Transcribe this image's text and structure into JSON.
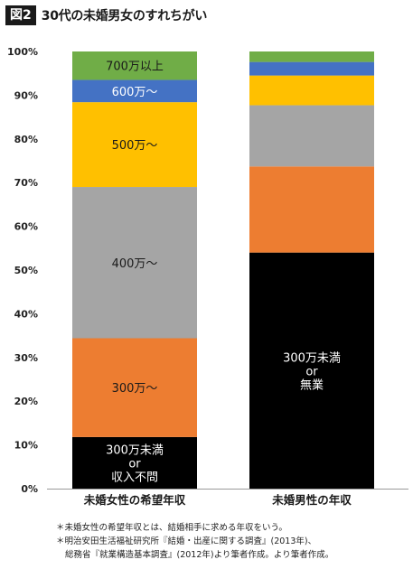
{
  "header": {
    "figure_label": "図2",
    "title": "30代の未婚男女のすれちがい"
  },
  "chart_data": {
    "type": "bar",
    "stacked": true,
    "ylim": [
      0,
      100
    ],
    "yticks": [
      "0%",
      "10%",
      "20%",
      "30%",
      "40%",
      "50%",
      "60%",
      "70%",
      "80%",
      "90%",
      "100%"
    ],
    "grid": false,
    "categories": [
      "未婚女性の希望年収",
      "未婚男性の年収"
    ],
    "series": [
      {
        "name": "300万未満or収入不問",
        "color": "#000000",
        "textColor": "#ffffff",
        "values": [
          11.8,
          54
        ],
        "labels": [
          [
            "300万未満",
            "or",
            "収入不問"
          ],
          [
            "300万未満",
            "or",
            "無業"
          ]
        ]
      },
      {
        "name": "300万～",
        "color": "#ed7d31",
        "textColor": "#1a1a1a",
        "values": [
          22.6,
          19.7
        ],
        "labels": [
          [
            "300万～"
          ],
          []
        ]
      },
      {
        "name": "400万～",
        "color": "#a5a5a5",
        "textColor": "#1a1a1a",
        "values": [
          34.6,
          14
        ],
        "labels": [
          [
            "400万～"
          ],
          []
        ]
      },
      {
        "name": "500万～",
        "color": "#ffc000",
        "textColor": "#1a1a1a",
        "values": [
          19.4,
          6.8
        ],
        "labels": [
          [
            "500万～"
          ],
          []
        ]
      },
      {
        "name": "600万～",
        "color": "#4472c4",
        "textColor": "#ffffff",
        "values": [
          5.1,
          3.1
        ],
        "labels": [
          [
            "600万～"
          ],
          []
        ]
      },
      {
        "name": "700万以上",
        "color": "#70ad47",
        "textColor": "#1a1a1a",
        "values": [
          6.5,
          2.4
        ],
        "labels": [
          [
            "700万以上"
          ],
          []
        ]
      }
    ]
  },
  "notes": {
    "line1": "＊未婚女性の希望年収とは、結婚相手に求める年収をいう。",
    "line2": "＊明治安田生活福祉研究所『結婚・出産に関する調査』(2013年)、",
    "line3": "総務省『就業構造基本調査』(2012年)より筆者作成。より筆者作成。"
  }
}
